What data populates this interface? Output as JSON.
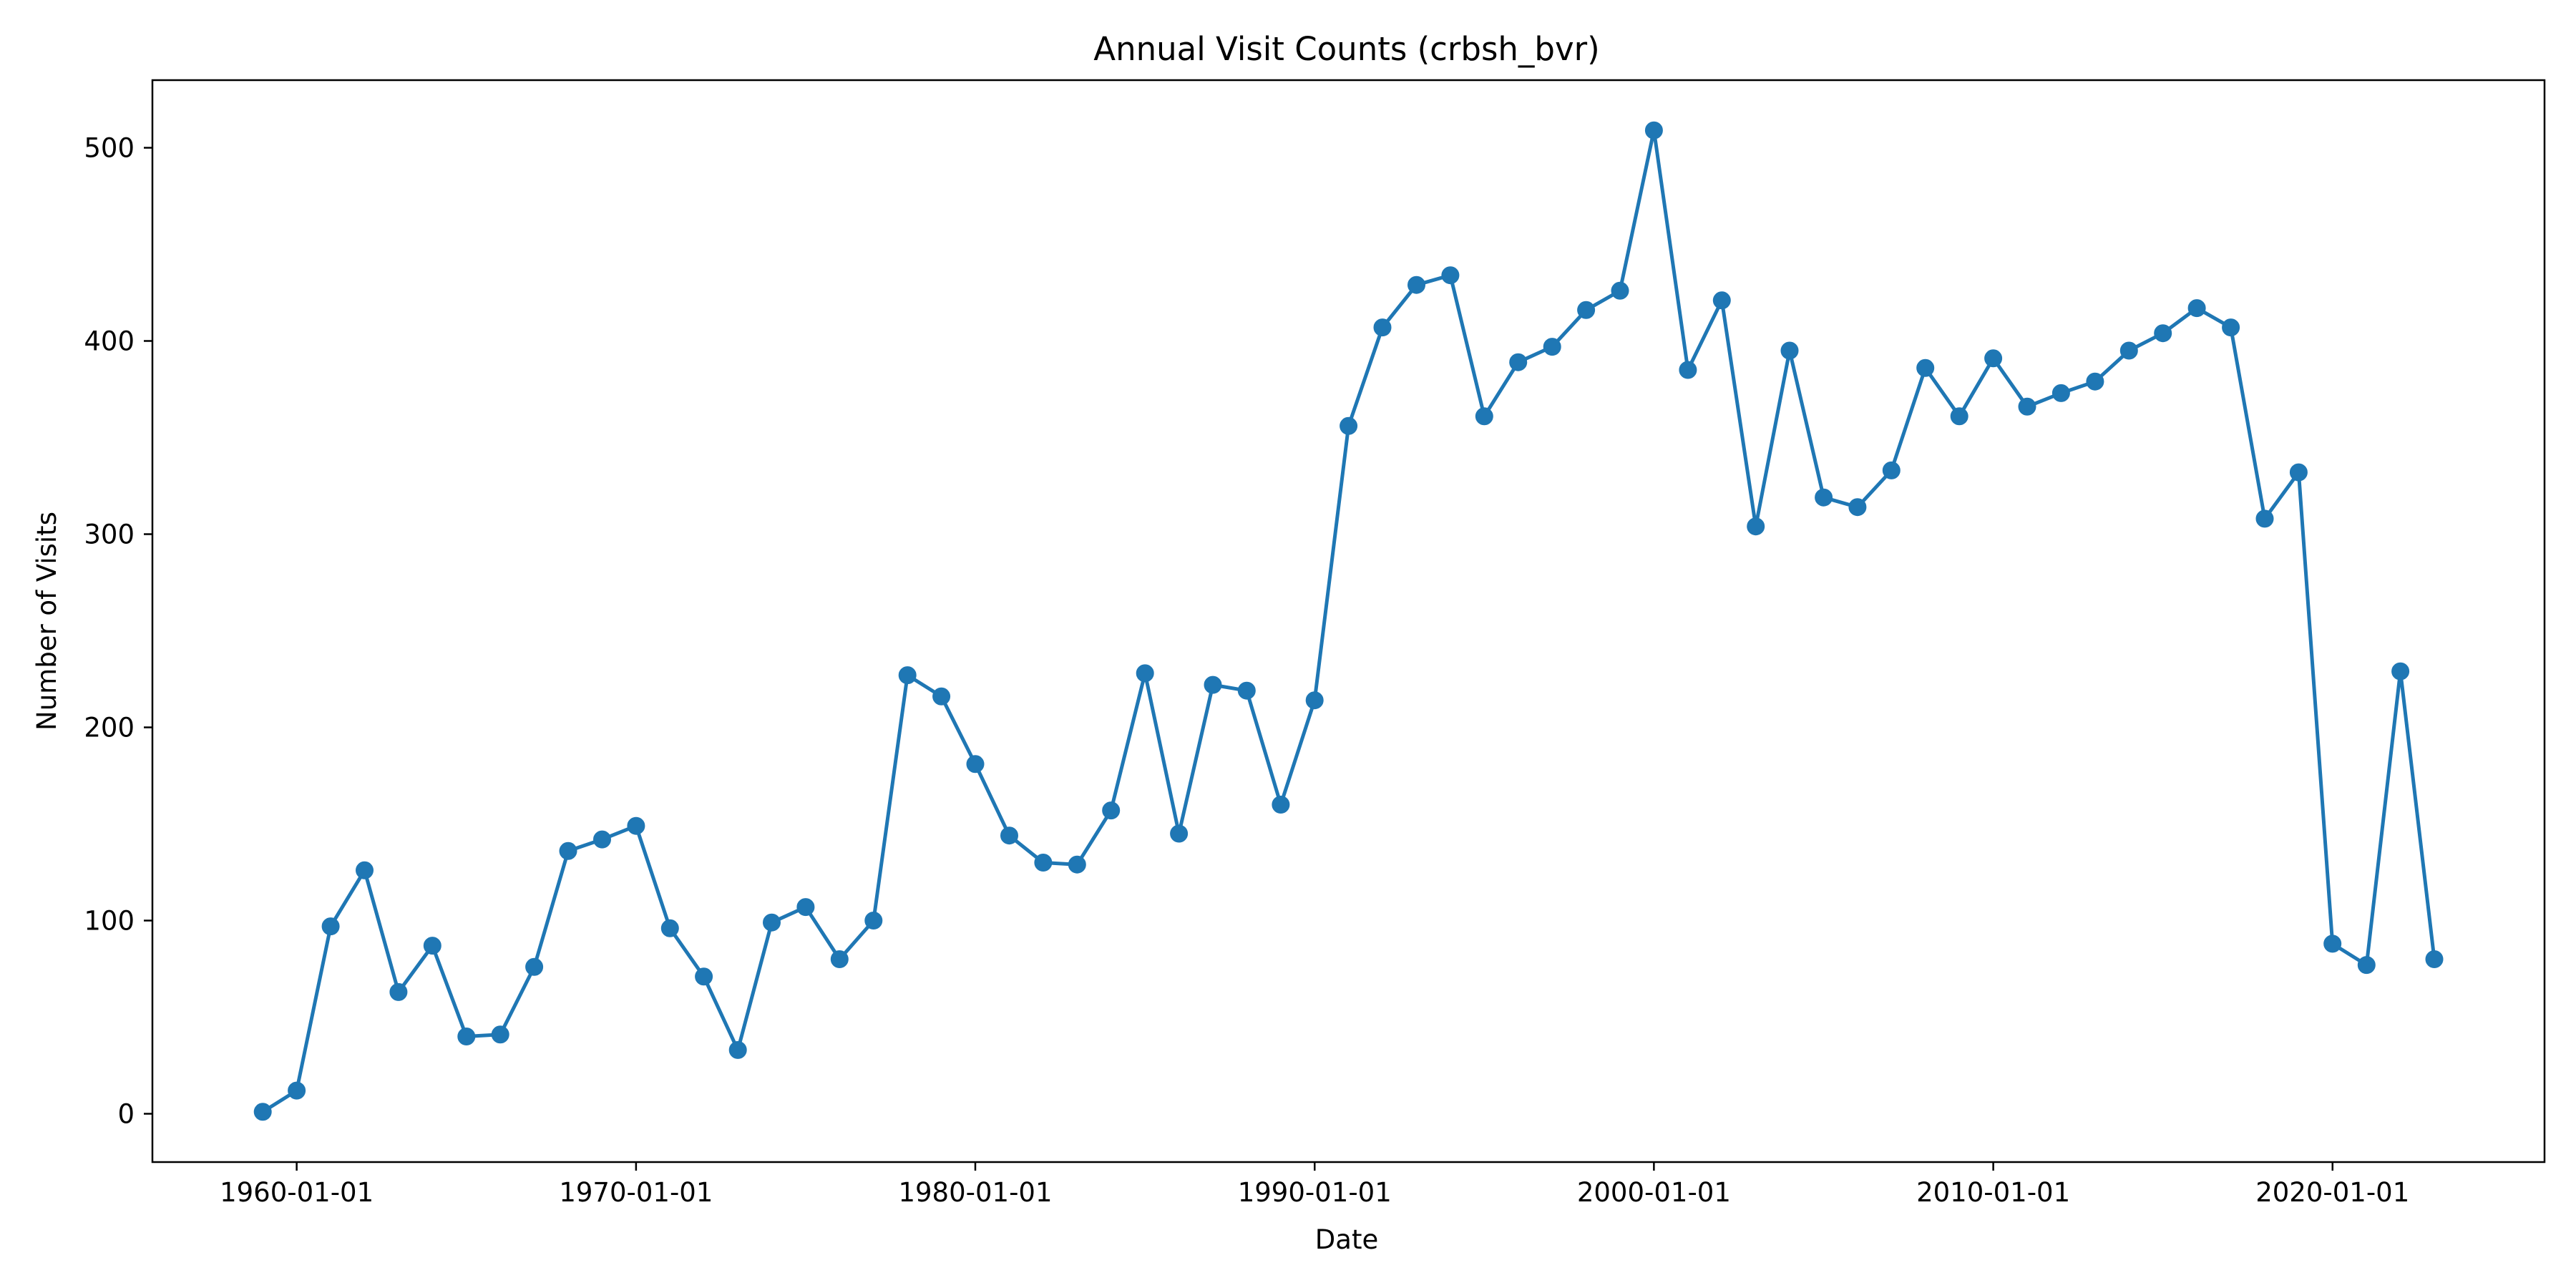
{
  "chart_data": {
    "type": "line",
    "title": "Annual Visit Counts (crbsh_bvr)",
    "xlabel": "Date",
    "ylabel": "Number of Visits",
    "x_tick_labels": [
      "1960-01-01",
      "1970-01-01",
      "1980-01-01",
      "1990-01-01",
      "2000-01-01",
      "2010-01-01",
      "2020-01-01"
    ],
    "y_ticks": [
      0,
      100,
      200,
      300,
      400,
      500
    ],
    "ylim": [
      -25,
      535
    ],
    "xlim": [
      "1955-10-01",
      "2026-04-01"
    ],
    "grid": false,
    "markers": true,
    "line_color": "#1f77b4",
    "series": [
      {
        "x": [
          "1959-01-01",
          "1960-01-01",
          "1961-01-01",
          "1962-01-01",
          "1963-01-01",
          "1964-01-01",
          "1965-01-01",
          "1966-01-01",
          "1967-01-01",
          "1968-01-01",
          "1969-01-01",
          "1970-01-01",
          "1971-01-01",
          "1972-01-01",
          "1973-01-01",
          "1974-01-01",
          "1975-01-01",
          "1976-01-01",
          "1977-01-01",
          "1978-01-01",
          "1979-01-01",
          "1980-01-01",
          "1981-01-01",
          "1982-01-01",
          "1983-01-01",
          "1984-01-01",
          "1985-01-01",
          "1986-01-01",
          "1987-01-01",
          "1988-01-01",
          "1989-01-01",
          "1990-01-01",
          "1991-01-01",
          "1992-01-01",
          "1993-01-01",
          "1994-01-01",
          "1995-01-01",
          "1996-01-01",
          "1997-01-01",
          "1998-01-01",
          "1999-01-01",
          "2000-01-01",
          "2001-01-01",
          "2002-01-01",
          "2003-01-01",
          "2004-01-01",
          "2005-01-01",
          "2006-01-01",
          "2007-01-01",
          "2008-01-01",
          "2009-01-01",
          "2010-01-01",
          "2011-01-01",
          "2012-01-01",
          "2013-01-01",
          "2014-01-01",
          "2015-01-01",
          "2016-01-01",
          "2017-01-01",
          "2018-01-01",
          "2019-01-01",
          "2020-01-01",
          "2021-01-01",
          "2022-01-01",
          "2023-01-01"
        ],
        "values": [
          1,
          12,
          97,
          126,
          63,
          87,
          40,
          41,
          76,
          136,
          142,
          149,
          96,
          71,
          33,
          99,
          107,
          80,
          100,
          227,
          216,
          181,
          144,
          130,
          129,
          157,
          228,
          145,
          222,
          219,
          160,
          214,
          356,
          407,
          429,
          434,
          361,
          389,
          397,
          416,
          426,
          509,
          385,
          421,
          304,
          395,
          319,
          314,
          333,
          386,
          361,
          391,
          366,
          373,
          379,
          395,
          404,
          417,
          407,
          308,
          332,
          88,
          77,
          229,
          80
        ]
      }
    ]
  }
}
